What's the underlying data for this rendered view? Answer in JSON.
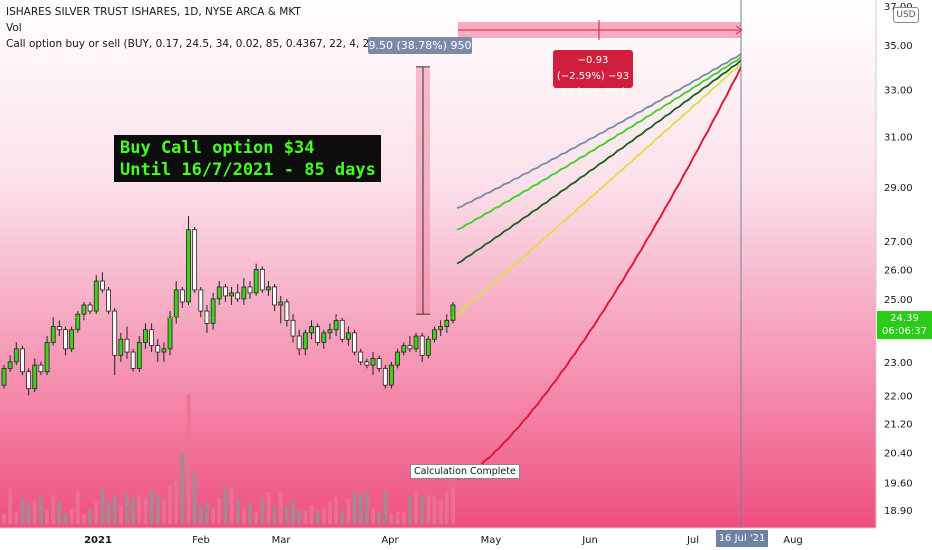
{
  "legend": {
    "symbol_line": "ISHARES SILVER TRUST ISHARES, 1D, NYSE ARCA & MKT",
    "vol_label": "Vol",
    "indicator_line": "Call option buy or sell (BUY, 0.17, 24.5, 34, 0.02, 85, 0.4367, 22, 4, 2021, 3)"
  },
  "annotation": {
    "line1": "Buy Call option $34",
    "line2": "Until 16/7/2021 - 85 days"
  },
  "measure_label": "9.50 (38.78%) 950",
  "range_label": {
    "line1": "−0.93 (−2.59%) −93",
    "line2": "59 bars, 85d"
  },
  "calc_label": "Calculation Complete",
  "currency_badge": "USD",
  "price_tag": {
    "price": "24.39",
    "countdown": "06:06:37"
  },
  "date_tag": "16 Jul '21",
  "colors": {
    "up": "#3fcf1f",
    "down": "#d11e3c",
    "accent_green": "#2bcc17",
    "gradient_bottom": "#ef4f7f"
  },
  "chart_data": {
    "type": "candlestick",
    "x_tick_labels": [
      "2021",
      "Feb",
      "Mar",
      "Apr",
      "May",
      "Jun",
      "Jul",
      "Aug"
    ],
    "y_tick_labels": [
      "37.00",
      "35.00",
      "33.00",
      "31.00",
      "29.00",
      "27.00",
      "26.00",
      "25.00",
      "24.00",
      "23.00",
      "22.00",
      "21.20",
      "20.40",
      "19.60",
      "18.90"
    ],
    "y_axis_scale": "log",
    "ylim": [
      18.6,
      37.0
    ],
    "candles": [
      [
        22.3,
        22.9,
        22.2,
        22.8
      ],
      [
        22.8,
        23.2,
        22.7,
        23.0
      ],
      [
        23.0,
        23.6,
        22.9,
        23.4
      ],
      [
        23.4,
        23.5,
        22.6,
        22.7
      ],
      [
        22.7,
        22.8,
        22.0,
        22.2
      ],
      [
        22.2,
        23.1,
        22.1,
        22.9
      ],
      [
        22.9,
        23.0,
        22.6,
        22.7
      ],
      [
        22.7,
        23.8,
        22.6,
        23.6
      ],
      [
        23.6,
        24.4,
        23.5,
        24.1
      ],
      [
        24.1,
        24.3,
        23.8,
        24.0
      ],
      [
        24.0,
        24.1,
        23.2,
        23.4
      ],
      [
        23.4,
        24.1,
        23.3,
        24.0
      ],
      [
        24.0,
        24.6,
        23.9,
        24.5
      ],
      [
        24.5,
        24.9,
        24.3,
        24.8
      ],
      [
        24.8,
        24.9,
        24.5,
        24.6
      ],
      [
        24.6,
        25.8,
        24.5,
        25.6
      ],
      [
        25.6,
        25.9,
        25.2,
        25.3
      ],
      [
        25.3,
        25.4,
        24.5,
        24.6
      ],
      [
        24.6,
        24.7,
        22.6,
        23.2
      ],
      [
        23.2,
        23.9,
        23.0,
        23.7
      ],
      [
        23.7,
        24.1,
        23.1,
        23.3
      ],
      [
        23.3,
        23.4,
        22.7,
        22.8
      ],
      [
        22.8,
        23.8,
        22.7,
        23.6
      ],
      [
        23.6,
        24.2,
        23.4,
        24.0
      ],
      [
        24.0,
        24.2,
        23.3,
        23.5
      ],
      [
        23.5,
        23.7,
        23.0,
        23.3
      ],
      [
        23.3,
        23.6,
        23.0,
        23.4
      ],
      [
        23.4,
        24.6,
        23.2,
        24.4
      ],
      [
        24.4,
        25.6,
        24.2,
        25.3
      ],
      [
        25.3,
        25.4,
        24.7,
        24.9
      ],
      [
        24.9,
        27.9,
        24.8,
        27.4
      ],
      [
        27.4,
        27.5,
        25.2,
        25.3
      ],
      [
        25.3,
        25.4,
        24.4,
        24.6
      ],
      [
        24.6,
        24.8,
        23.9,
        24.2
      ],
      [
        24.2,
        25.2,
        24.0,
        25.0
      ],
      [
        25.0,
        25.6,
        24.8,
        25.4
      ],
      [
        25.4,
        25.5,
        24.9,
        25.1
      ],
      [
        25.1,
        25.4,
        24.8,
        25.2
      ],
      [
        25.2,
        25.5,
        24.9,
        25.0
      ],
      [
        25.0,
        25.7,
        24.8,
        25.4
      ],
      [
        25.4,
        25.6,
        25.0,
        25.2
      ],
      [
        25.2,
        26.2,
        25.1,
        26.0
      ],
      [
        26.0,
        26.1,
        25.2,
        25.3
      ],
      [
        25.3,
        25.6,
        25.1,
        25.4
      ],
      [
        25.4,
        25.5,
        24.6,
        24.8
      ],
      [
        24.8,
        25.1,
        24.2,
        24.9
      ],
      [
        24.9,
        25.0,
        24.1,
        24.3
      ],
      [
        24.3,
        24.5,
        23.6,
        23.8
      ],
      [
        23.8,
        24.0,
        23.2,
        23.4
      ],
      [
        23.4,
        24.0,
        23.2,
        23.9
      ],
      [
        23.9,
        24.3,
        23.7,
        24.1
      ],
      [
        24.1,
        24.2,
        23.5,
        23.6
      ],
      [
        23.6,
        24.0,
        23.4,
        23.9
      ],
      [
        23.9,
        24.2,
        23.7,
        24.0
      ],
      [
        24.0,
        24.5,
        23.8,
        24.3
      ],
      [
        24.3,
        24.4,
        23.6,
        23.7
      ],
      [
        23.7,
        24.1,
        23.5,
        23.9
      ],
      [
        23.9,
        24.0,
        23.2,
        23.3
      ],
      [
        23.3,
        23.4,
        22.9,
        23.0
      ],
      [
        23.0,
        23.1,
        22.8,
        22.9
      ],
      [
        22.9,
        23.3,
        22.6,
        23.1
      ],
      [
        23.1,
        23.2,
        22.7,
        22.8
      ],
      [
        22.8,
        22.9,
        22.2,
        22.3
      ],
      [
        22.3,
        23.0,
        22.2,
        22.9
      ],
      [
        22.9,
        23.4,
        22.8,
        23.3
      ],
      [
        23.3,
        23.6,
        23.2,
        23.5
      ],
      [
        23.5,
        23.8,
        23.3,
        23.4
      ],
      [
        23.4,
        23.9,
        23.3,
        23.8
      ],
      [
        23.8,
        23.9,
        23.0,
        23.2
      ],
      [
        23.2,
        23.8,
        23.1,
        23.7
      ],
      [
        23.7,
        24.1,
        23.6,
        24.0
      ],
      [
        24.0,
        24.3,
        23.8,
        24.1
      ],
      [
        24.1,
        24.5,
        23.9,
        24.3
      ],
      [
        24.3,
        24.9,
        24.2,
        24.8
      ]
    ],
    "projection_lines": [
      {
        "color": "#7b8aa6",
        "start": 28.2,
        "end": 34.6
      },
      {
        "color": "#3fcf1f",
        "start": 27.4,
        "end": 34.45
      },
      {
        "color": "#1b5e20",
        "start": 26.2,
        "end": 34.3
      },
      {
        "color": "#d9e046",
        "start": 24.5,
        "end": 34.15
      },
      {
        "color": "#e01a3a",
        "start": 19.7,
        "end": 34.0
      }
    ],
    "current_price": 24.39,
    "measure_low": 24.5,
    "measure_high": 34.0
  }
}
